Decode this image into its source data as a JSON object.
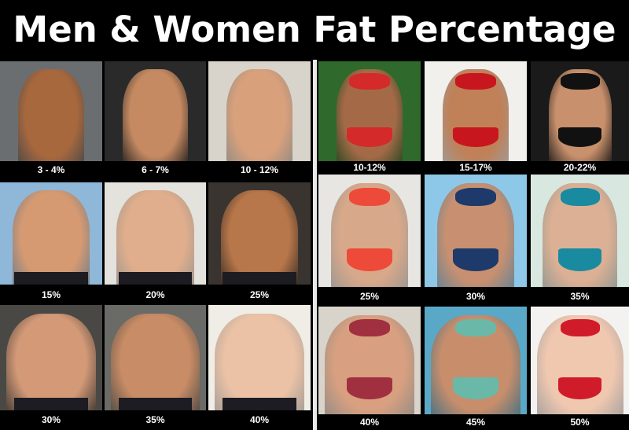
{
  "title": "Men & Women Fat Percentage",
  "men": {
    "labels": [
      "3 - 4%",
      "6 - 7%",
      "10 - 12%",
      "15%",
      "20%",
      "25%",
      "30%",
      "35%",
      "40%"
    ]
  },
  "women": {
    "labels": [
      "10-12%",
      "15-17%",
      "20-22%",
      "25%",
      "30%",
      "35%",
      "40%",
      "45%",
      "50%"
    ]
  },
  "colors": {
    "background": "#000000",
    "title_text": "#ffffff",
    "label_text": "#ffffff"
  }
}
